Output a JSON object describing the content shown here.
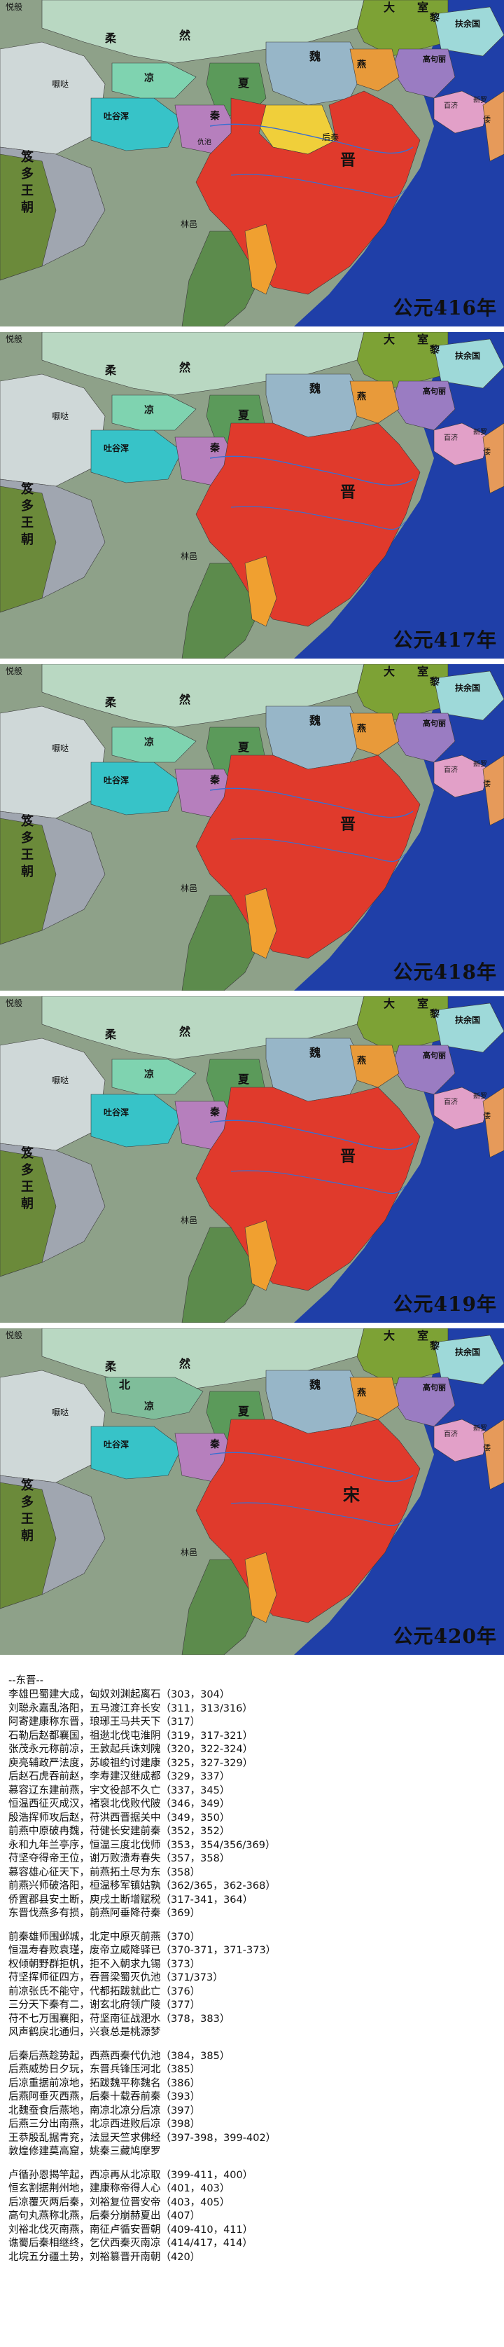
{
  "maps": [
    {
      "year": "公元416年",
      "regions": [
        "悦般",
        "大",
        "室",
        "柔",
        "然",
        "黎",
        "扶余国",
        "高句丽",
        "吐谷浑",
        "百济",
        "新罗",
        "倭",
        "夏",
        "魏",
        "燕",
        "后秦",
        "秦",
        "凉",
        "仇池",
        "晋",
        "林邑",
        "笈多王朝",
        "嚈哒"
      ]
    },
    {
      "year": "公元417年",
      "regions": [
        "悦般",
        "大",
        "室",
        "柔",
        "然",
        "黎",
        "扶余国",
        "高句丽",
        "吐谷浑",
        "百济",
        "新罗",
        "倭",
        "夏",
        "魏",
        "燕",
        "秦",
        "凉",
        "晋",
        "林邑",
        "笈多王朝",
        "嚈哒"
      ]
    },
    {
      "year": "公元418年",
      "regions": [
        "悦般",
        "大",
        "室",
        "柔",
        "然",
        "黎",
        "扶余国",
        "高句丽",
        "吐谷浑",
        "百济",
        "新罗",
        "倭",
        "夏",
        "魏",
        "燕",
        "秦",
        "凉",
        "晋",
        "林邑",
        "笈多王朝",
        "嚈哒"
      ]
    },
    {
      "year": "公元419年",
      "regions": [
        "悦般",
        "大",
        "室",
        "柔",
        "然",
        "黎",
        "扶余国",
        "高句丽",
        "吐谷浑",
        "百济",
        "新罗",
        "倭",
        "夏",
        "魏",
        "燕",
        "秦",
        "凉",
        "晋",
        "林邑",
        "笈多王朝",
        "嚈哒"
      ]
    },
    {
      "year": "公元420年",
      "regions": [
        "悦般",
        "大",
        "室",
        "柔",
        "然",
        "黎",
        "扶余国",
        "高句丽",
        "吐谷浑",
        "百济",
        "新罗",
        "倭",
        "北",
        "凉",
        "夏",
        "魏",
        "燕",
        "秦",
        "宋",
        "林邑",
        "笈多王朝",
        "嚈哒"
      ]
    }
  ],
  "poem": {
    "heading": "--东晋--",
    "stanzas": [
      [
        "李雄巴蜀建大成，匈奴刘渊起离石（303，304）",
        "刘聪永嘉乱洛阳，五马渡江弃长安（311，313/316）",
        "阿寄建康称东晋，琅琊王马共天下（317）",
        "石勒后赵都襄国，祖逖北伐屯淮阴（319，317-321）",
        "张茂永元称前凉，王敦起兵诛刘隗（320，322-324）",
        "庾亮辅政严法度，苏峻祖约讨建康（325，327-329）",
        "后赵石虎吞前赵，李寿建汉继成都（329，337）",
        "慕容辽东建前燕，宇文役部不久亡（337，345）",
        "恒温西征灭成汉，褚裒北伐败代陂（346，349）",
        "殷浩挥师攻后赵，苻洪西晋据关中（349，350）",
        "前燕中原破冉魏，苻健长安建前秦（352，352）",
        "永和九年兰亭序，恒温三度北伐师（353，354/356/369）",
        "苻坚夺得帝王位，谢万败溃寿春失（357，358）",
        "慕容雄心征天下，前燕拓土尽为东（358）",
        "前燕兴师破洛阳，桓温移军镇姑孰（362/365，362-368）",
        "侨置郡县安土断，庾戌土断增赋税（317-341，364）",
        "东晋伐燕多有损，前燕阿垂降苻秦（369）"
      ],
      [
        "前秦雄师围邺城，北定中原灭前燕（370）",
        "恒温寿春败袁瑾，废帝立威降驿已（370-371，371-373）",
        "权倾朝野群拒帆，拒不入朝求九锡（373）",
        "苻坚挥师征四方，吞晋梁蜀灭仇池（371/373）",
        "前凉张氏不能守，代都拓跋就此亡（376）",
        "三分天下秦有二，谢玄北府领广陵（377）",
        "苻不七万围襄阳，苻坚南征战淝水（378，383）",
        "风声鹤戾北通归，兴衰总是桃源梦"
      ],
      [
        "后秦后燕趁势起，西燕西秦代仇池（384，385）",
        "后燕威势日夕玩，东晋兵锋压河北（385）",
        "后凉重据前凉地，拓跋魏平称魏名（386）",
        "后燕阿垂灭西燕，后秦十载吞前秦（393）",
        "北魏蚕食后燕地，南凉北凉分后凉（397）",
        "后燕三分出南燕，北凉西进败后凉（398）",
        "王恭殷乱据青兖，法显天竺求佛经（397-398，399-402）",
        "敦煌修建莫高窟，姚秦三藏鸠摩罗"
      ],
      [
        "卢循孙恩揭竿起，西凉再从北凉取（399-411，400）",
        "恒玄割据荆州地，建康称帝得人心（401，403）",
        "后凉覆灭两后秦，刘裕复位晋安帝（403，405）",
        "高句丸燕称北燕，后秦分崩赫夏出（407）",
        "刘裕北伐灭南燕，南征卢循安晋朝（409-410，411）",
        "谯蜀后秦相继终，乞伏西秦灭南凉（414/417，414）",
        "北垸五分疆土势，刘裕篡晋开南朝（420）"
      ]
    ]
  }
}
